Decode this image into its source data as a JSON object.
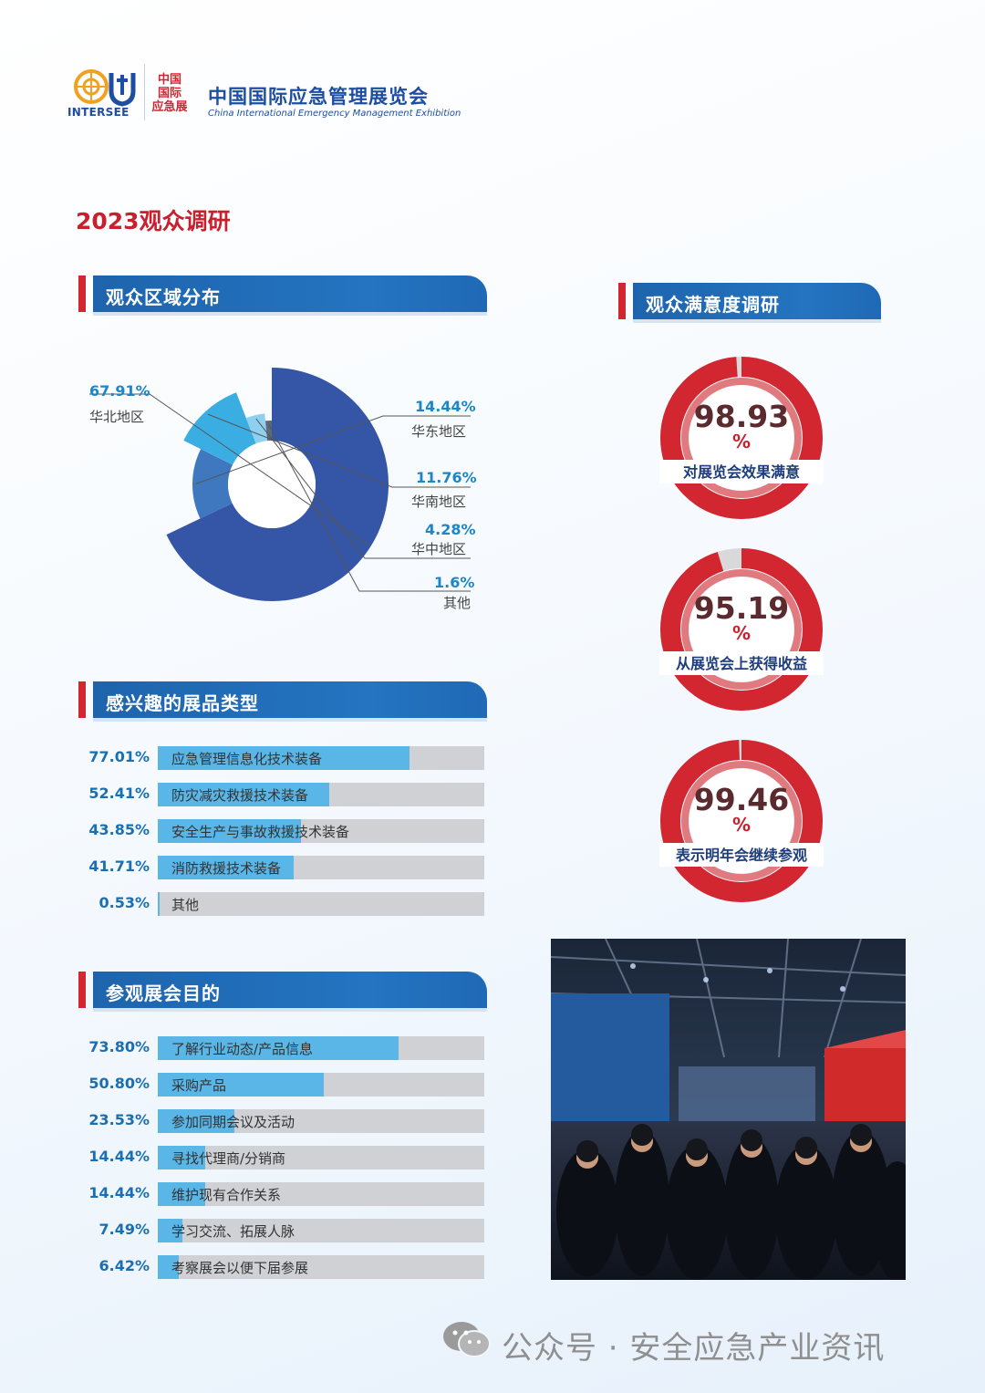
{
  "header": {
    "brand": "INTERSEE",
    "seal_lines": [
      "中国",
      "国际",
      "应急展"
    ],
    "title_cn": "中国国际应急管理展览会",
    "title_en": "China International Emergency Management Exhibition"
  },
  "page_title": "2023观众调研",
  "sections": {
    "region": "观众区域分布",
    "satisfaction": "观众满意度调研",
    "interest": "感兴趣的展品类型",
    "purpose": "参观展会目的"
  },
  "colors": {
    "accent_red": "#d22630",
    "brand_blue": "#1e64ad",
    "bar_fill": "#59b6e6",
    "bar_track": "#cfd1d4",
    "donut": [
      "#3556a6",
      "#3f78bf",
      "#3aaee2",
      "#8dd0f0",
      "#5b6a7a"
    ]
  },
  "chart_data": [
    {
      "type": "pie",
      "title": "观众区域分布",
      "categories": [
        "华北地区",
        "华东地区",
        "华南地区",
        "华中地区",
        "其他"
      ],
      "values": [
        67.91,
        14.44,
        11.76,
        4.28,
        1.6
      ],
      "labels": [
        "67.91%",
        "14.44%",
        "11.76%",
        "4.28%",
        "1.6%"
      ]
    },
    {
      "type": "bar",
      "title": "感兴趣的展品类型",
      "categories": [
        "应急管理信息化技术装备",
        "防灾减灾救援技术装备",
        "安全生产与事故救援技术装备",
        "消防救援技术装备",
        "其他"
      ],
      "values": [
        77.01,
        52.41,
        43.85,
        41.71,
        0.53
      ],
      "labels": [
        "77.01%",
        "52.41%",
        "43.85%",
        "41.71%",
        "0.53%"
      ],
      "xlim": [
        0,
        100
      ]
    },
    {
      "type": "bar",
      "title": "参观展会目的",
      "categories": [
        "了解行业动态/产品信息",
        "采购产品",
        "参加同期会议及活动",
        "寻找代理商/分销商",
        "维护现有合作关系",
        "学习交流、拓展人脉",
        "考察展会以便下届参展"
      ],
      "values": [
        73.8,
        50.8,
        23.53,
        14.44,
        14.44,
        7.49,
        6.42
      ],
      "labels": [
        "73.80%",
        "50.80%",
        "23.53%",
        "14.44%",
        "14.44%",
        "7.49%",
        "6.42%"
      ],
      "xlim": [
        0,
        100
      ]
    },
    {
      "type": "pie",
      "title": "观众满意度调研",
      "categories": [
        "对展览会效果满意",
        "从展览会上获得收益",
        "表示明年会继续参观"
      ],
      "values": [
        98.93,
        95.19,
        99.46
      ],
      "numbers": [
        "98.93",
        "95.19",
        "99.46"
      ],
      "unit": "%"
    }
  ],
  "watermark": "公众号 · 安全应急产业资讯"
}
